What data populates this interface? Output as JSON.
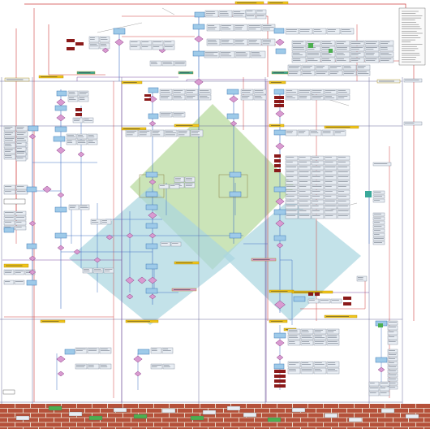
{
  "colors": {
    "background": "#ffffff",
    "process_box": "#9ecae9",
    "process_border": "#3d78b5",
    "decision": "#d99bd1",
    "decision_border": "#8a3d85",
    "note_box": "#e8edf3",
    "note_border": "#7a8696",
    "label_tag": "#f0c419",
    "label_tag_border": "#b08a00",
    "dark_block": "#8b1a1a",
    "green_tag": "#4caf50",
    "teal_tag": "#3aa89a",
    "connector_blue": "#4472c4",
    "connector_red": "#d04040",
    "connector_purple": "#7a4fa0",
    "connector_gray": "#8a8a8a",
    "lane_line": "#6a6a9a",
    "diamond_green": "#b9dba0",
    "diamond_blue": "#a9d5e0",
    "brick": "#b5513a",
    "mortar": "#e8d8c8"
  },
  "diagram": {
    "type": "flowchart",
    "legend_icon": "legend-list-icon",
    "decor_icon": "brick-wall-icon"
  }
}
